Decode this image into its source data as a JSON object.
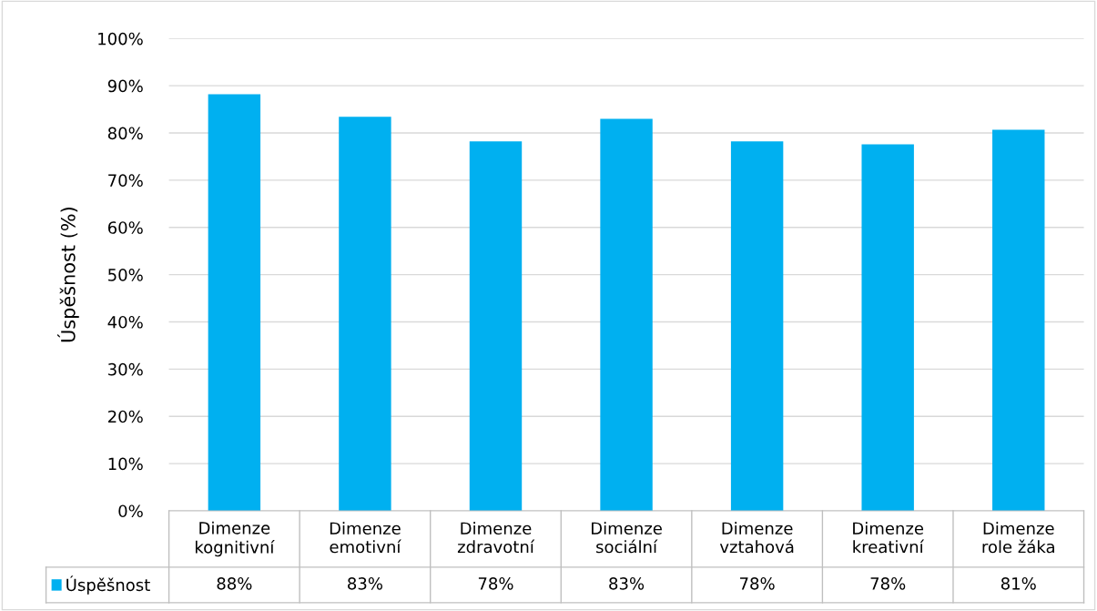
{
  "chart_data": {
    "type": "bar",
    "ylabel": "Úspěšnost (%)",
    "categories": [
      "Dimenze\nkognitivní",
      "Dimenze\nemotivní",
      "Dimenze\nzdravotní",
      "Dimenze\nsociální",
      "Dimenze\nvztahová",
      "Dimenze\nkreativní",
      "Dimenze\nrole žáka"
    ],
    "series": [
      {
        "name": "Úspěšnost",
        "color": "#00b0f0",
        "values": [
          88.2,
          83.4,
          78.2,
          83.0,
          78.2,
          77.6,
          80.7
        ],
        "value_labels": [
          "88%",
          "83%",
          "78%",
          "83%",
          "78%",
          "78%",
          "81%"
        ]
      }
    ],
    "ylim": [
      0,
      100
    ],
    "yticks": [
      {
        "value": 0,
        "label": "0%"
      },
      {
        "value": 10,
        "label": "10%"
      },
      {
        "value": 20,
        "label": "20%"
      },
      {
        "value": 30,
        "label": "30%"
      },
      {
        "value": 40,
        "label": "40%"
      },
      {
        "value": 50,
        "label": "50%"
      },
      {
        "value": 60,
        "label": "60%"
      },
      {
        "value": 70,
        "label": "70%"
      },
      {
        "value": 80,
        "label": "80%"
      },
      {
        "value": 90,
        "label": "90%"
      },
      {
        "value": 100,
        "label": "100%"
      }
    ],
    "grid": "y"
  }
}
